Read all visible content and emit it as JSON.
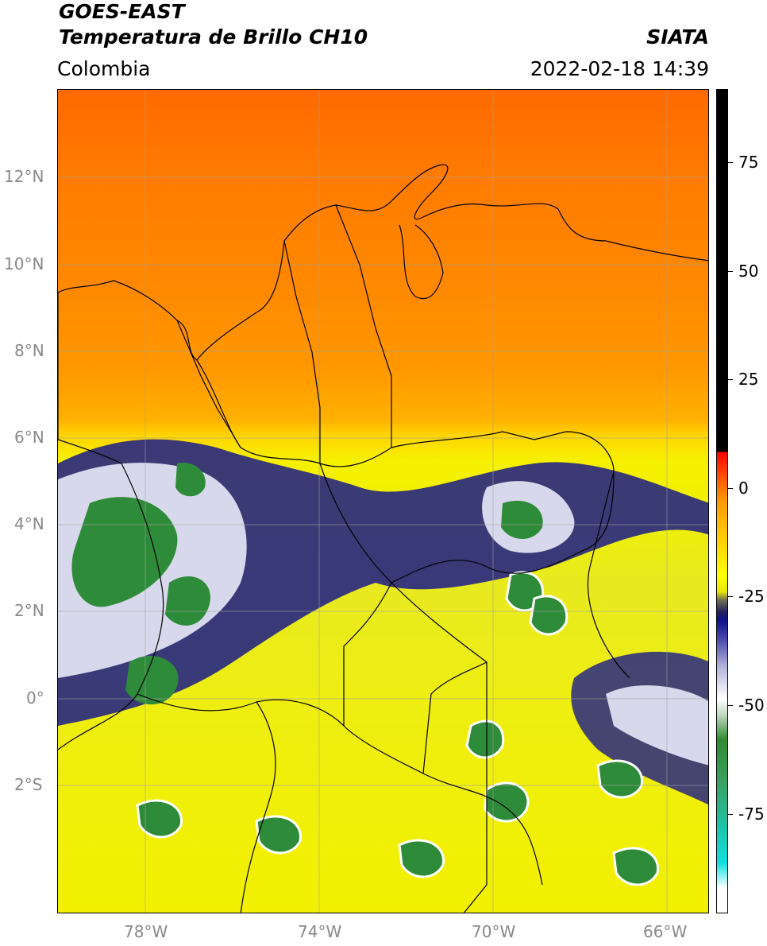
{
  "header": {
    "satellite": "GOES-EAST",
    "product": "Temperatura de Brillo CH10",
    "region": "Colombia",
    "org": "SIATA",
    "datetime": "2022-02-18 14:39"
  },
  "map": {
    "lat_labels": [
      "12°N",
      "10°N",
      "8°N",
      "6°N",
      "4°N",
      "2°N",
      "0°",
      "2°S"
    ],
    "lon_labels": [
      "78°W",
      "74°W",
      "70°W",
      "66°W"
    ],
    "lat_range": [
      -4.9,
      14.0
    ],
    "lon_range": [
      -80.0,
      -65.0
    ]
  },
  "colorbar": {
    "labels": [
      "75",
      "50",
      "25",
      "0",
      "-25",
      "-50",
      "-75"
    ],
    "range": [
      -100,
      90
    ]
  },
  "colors": {
    "warm_top": "#ff6a00",
    "mid": "#ffd400",
    "cloud_blue": "#10108a",
    "cloud_green": "#2e8b2e"
  }
}
